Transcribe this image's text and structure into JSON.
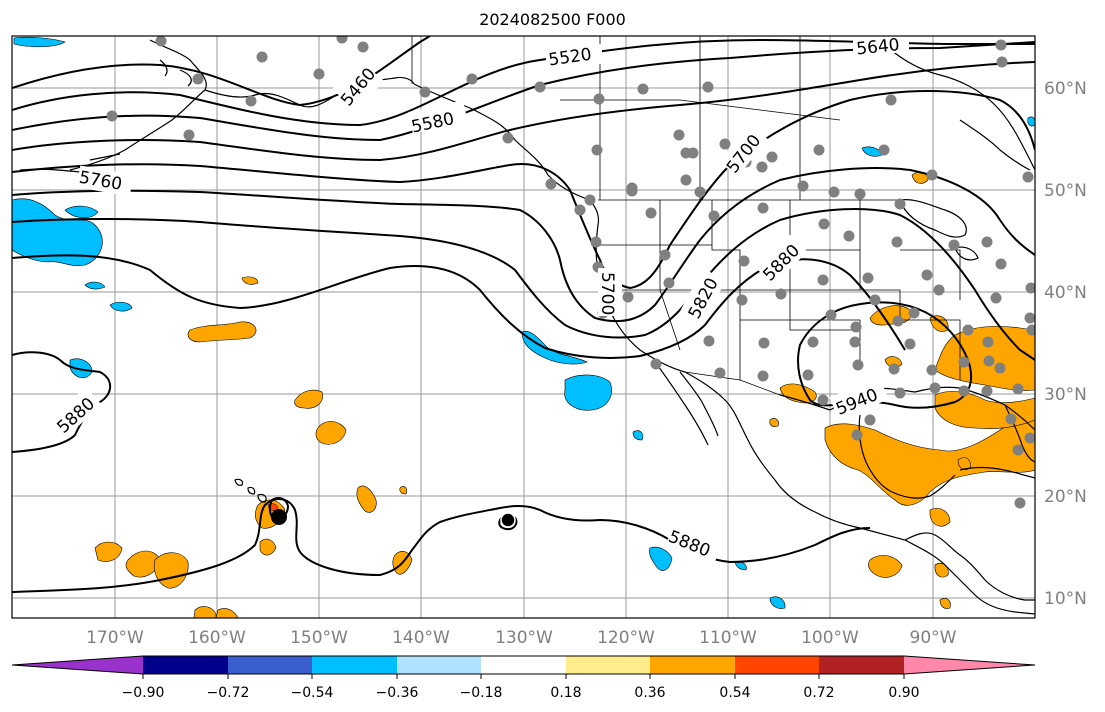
{
  "title": "2024082500 F000",
  "lat_labels": [
    "60°N",
    "50°N",
    "40°N",
    "30°N",
    "20°N",
    "10°N"
  ],
  "lon_labels": [
    "170°W",
    "160°W",
    "150°W",
    "140°W",
    "130°W",
    "120°W",
    "110°W",
    "100°W",
    "90°W"
  ],
  "contour_labels": [
    "5520",
    "5640",
    "5460",
    "5580",
    "5760",
    "5700",
    "5880",
    "5700",
    "5820",
    "5880",
    "5940",
    "5880"
  ],
  "colorbar": {
    "tick_labels": [
      "−0.90",
      "−0.72",
      "−0.54",
      "−0.36",
      "−0.18",
      "0.18",
      "0.36",
      "0.54",
      "0.72",
      "0.90"
    ],
    "colors": [
      "#9932CC",
      "#00008B",
      "#3A5FCD",
      "#00BFFF",
      "#B0E2FF",
      "#FFFFFF",
      "#FFEC8B",
      "#FFA500",
      "#FF4500",
      "#B22222",
      "#FF88AA"
    ]
  },
  "colors": {
    "positive": "#FFA500",
    "negative": "#00BFFF",
    "station": "#808080",
    "contour": "#000000"
  }
}
